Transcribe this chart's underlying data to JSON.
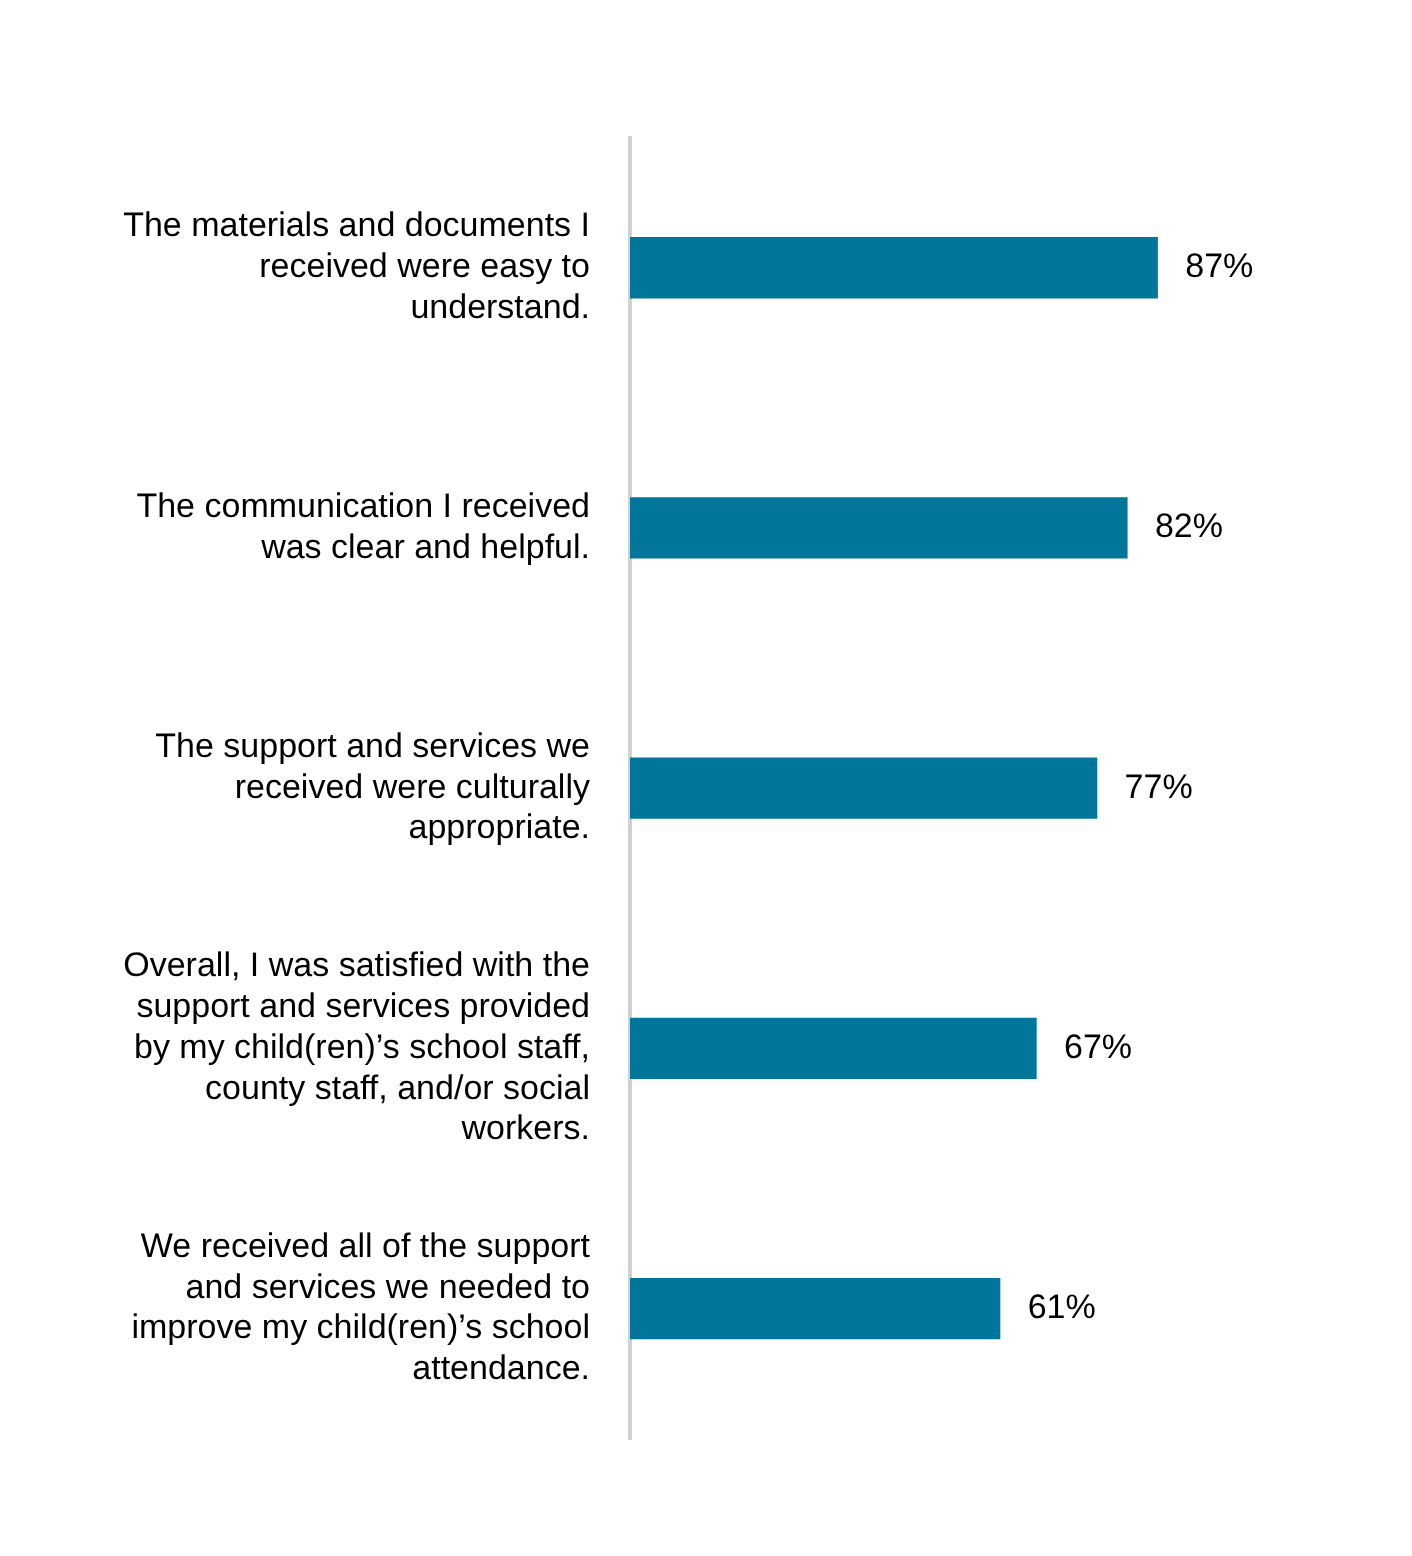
{
  "chart_data": {
    "type": "bar",
    "orientation": "horizontal",
    "categories": [
      "The materials and documents I received were easy to understand.",
      "The communication I received was clear and helpful.",
      "The support and services we received were culturally appropriate.",
      "Overall, I was satisfied with the support and services provided by my child(ren)’s school staff, county staff, and/or social workers.",
      "We received all of the support and services we needed to improve my child(ren)’s school attendance."
    ],
    "values": [
      87,
      82,
      77,
      67,
      61
    ],
    "value_labels": [
      "87%",
      "82%",
      "77%",
      "67%",
      "61%"
    ],
    "color": "#00769a",
    "legend": false
  }
}
